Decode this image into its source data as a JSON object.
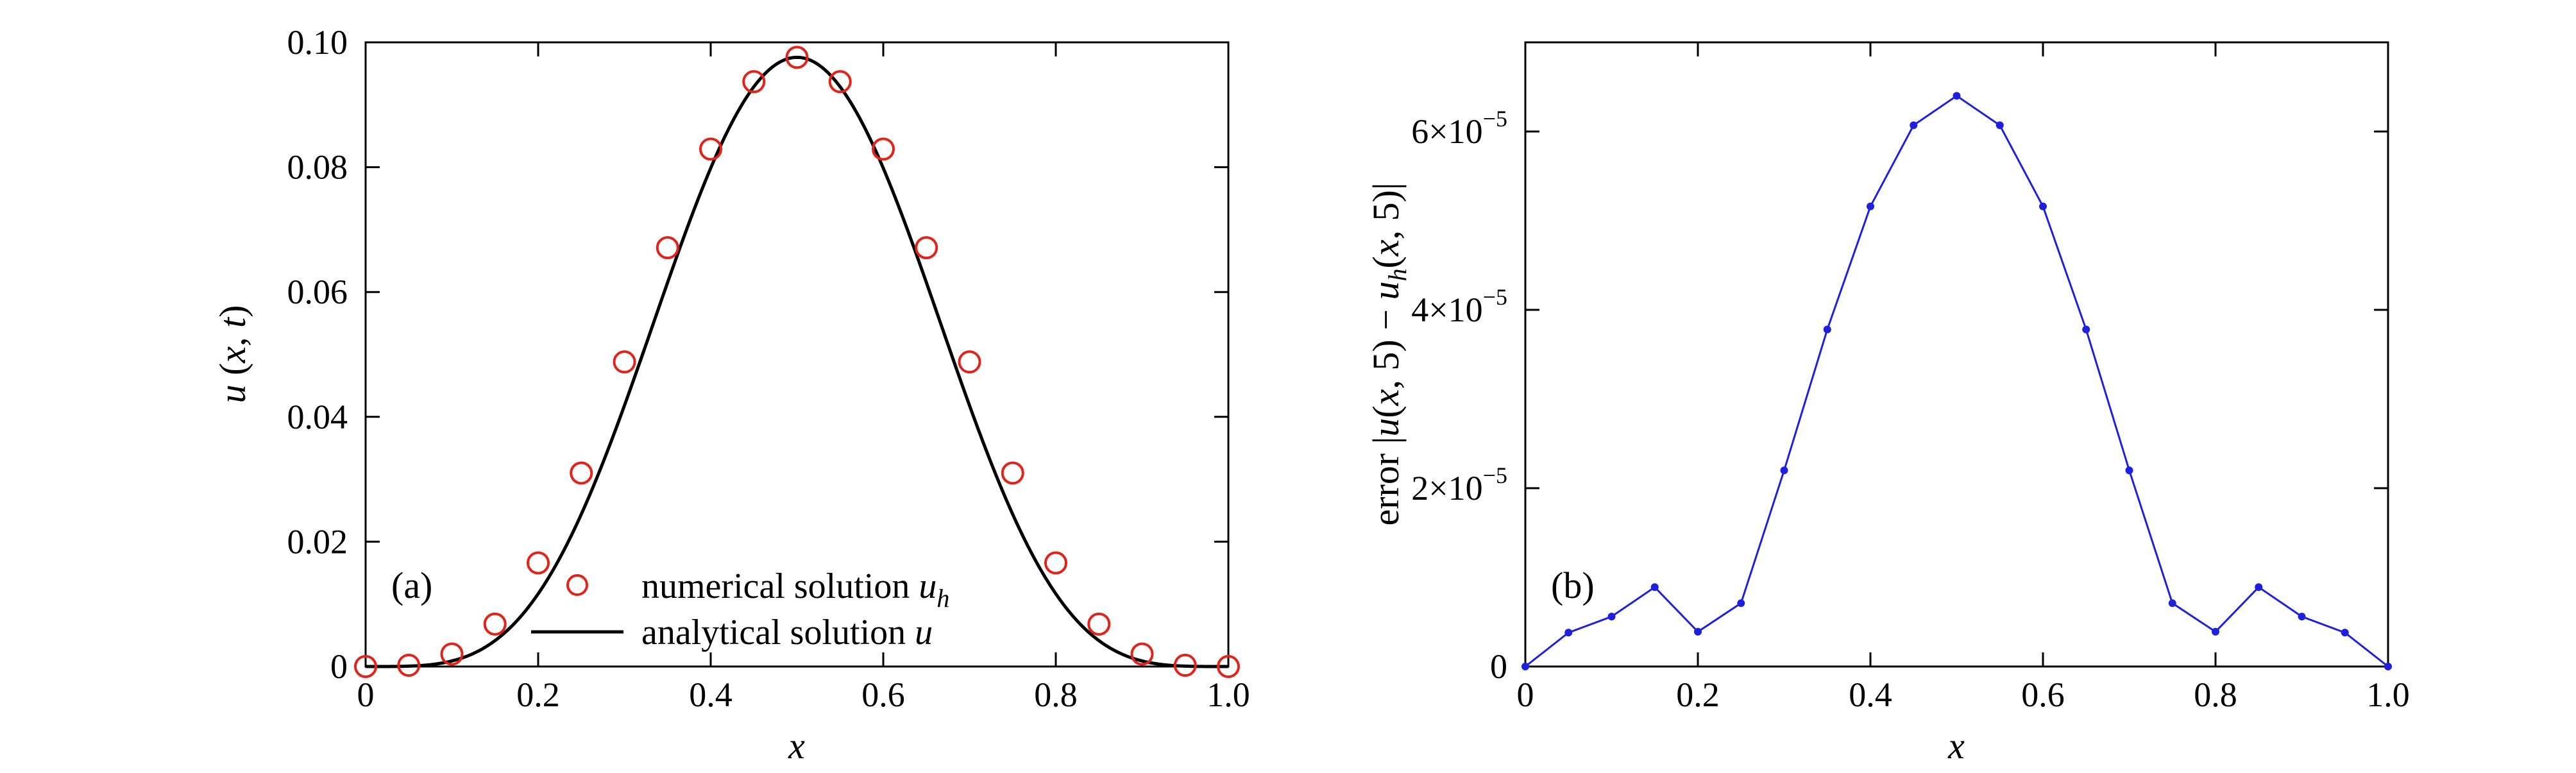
{
  "chart_data": [
    {
      "type": "line",
      "panel_label": "(a)",
      "xlabel": "x",
      "ylabel": "u(x, t)",
      "xlim": [
        0,
        1.0
      ],
      "ylim": [
        0,
        0.1
      ],
      "x_ticks": [
        "0",
        "0.2",
        "0.4",
        "0.6",
        "0.8",
        "1.0"
      ],
      "y_ticks": [
        "0",
        "0.02",
        "0.04",
        "0.06",
        "0.08",
        "0.10"
      ],
      "grid": false,
      "legend_position": "bottom-center",
      "series": [
        {
          "name": "numerical solution u_h",
          "style": "markers",
          "marker": "circle",
          "color": "#e2231a",
          "x": [
            0,
            0.05,
            0.1,
            0.15,
            0.2,
            0.25,
            0.3,
            0.35,
            0.4,
            0.45,
            0.5,
            0.55,
            0.6,
            0.65,
            0.7,
            0.75,
            0.8,
            0.85,
            0.9,
            0.95,
            1.0
          ],
          "y": [
            0,
            0.0002,
            0.002,
            0.0068,
            0.0166,
            0.031,
            0.0488,
            0.0671,
            0.0829,
            0.0937,
            0.0976,
            0.0937,
            0.0829,
            0.0671,
            0.0488,
            0.031,
            0.0166,
            0.0068,
            0.002,
            0.0002,
            0
          ]
        },
        {
          "name": "analytical solution u",
          "style": "line",
          "color": "#000000",
          "function": "0.0976 * sin(pi*x)^4"
        }
      ],
      "legend": {
        "items": [
          {
            "label": "numerical solution ",
            "sub": "h",
            "var": "u"
          },
          {
            "label": "analytical solution ",
            "sub": "",
            "var": "u"
          }
        ]
      }
    },
    {
      "type": "line",
      "panel_label": "(b)",
      "xlabel": "x",
      "ylabel": "error |u(x, 5) − u_h(x, 5)|",
      "xlim": [
        0,
        1.0
      ],
      "ylim": [
        0,
        7e-05
      ],
      "x_ticks": [
        "0",
        "0.2",
        "0.4",
        "0.6",
        "0.8",
        "1.0"
      ],
      "y_tick_values": [
        0,
        2e-05,
        4e-05,
        6e-05
      ],
      "y_ticks": [
        "0",
        "2×10",
        "4×10",
        "6×10"
      ],
      "y_tick_exponent": "−5",
      "grid": false,
      "series": [
        {
          "name": "",
          "style": "line+markers",
          "color": "#1f1fe0",
          "x": [
            0,
            0.05,
            0.1,
            0.15,
            0.2,
            0.25,
            0.3,
            0.35,
            0.4,
            0.45,
            0.5,
            0.55,
            0.6,
            0.65,
            0.7,
            0.75,
            0.8,
            0.85,
            0.9,
            0.95,
            1.0
          ],
          "y": [
            0,
            3.8e-06,
            5.6e-06,
            8.9e-06,
            3.9e-06,
            7.1e-06,
            2.2e-05,
            3.78e-05,
            5.16e-05,
            6.07e-05,
            6.4e-05,
            6.07e-05,
            5.16e-05,
            3.78e-05,
            2.2e-05,
            7.1e-06,
            3.9e-06,
            8.9e-06,
            5.6e-06,
            3.8e-06,
            0
          ]
        }
      ]
    }
  ]
}
